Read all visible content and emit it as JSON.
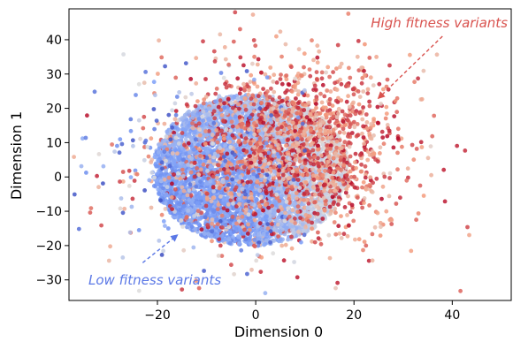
{
  "chart_data": {
    "type": "scatter",
    "xlabel": "Dimension 0",
    "ylabel": "Dimension 1",
    "xlim": [
      -38,
      52
    ],
    "ylim": [
      -36,
      49
    ],
    "xticks": [
      -20,
      0,
      20,
      40
    ],
    "yticks": [
      -30,
      -20,
      -10,
      0,
      10,
      20,
      30,
      40
    ],
    "xtick_labels": [
      "−20",
      "0",
      "20",
      "40"
    ],
    "ytick_labels": [
      "−30",
      "−20",
      "−10",
      "0",
      "10",
      "20",
      "30",
      "40"
    ],
    "grid": false,
    "colormap": "coolwarm",
    "cluster": {
      "center": [
        -1,
        2
      ],
      "radius_x": 20,
      "radius_y": 22
    },
    "annotations": [
      {
        "text": "High fitness variants",
        "color": "#d9534f",
        "arrow_from": [
          38,
          41
        ],
        "arrow_to": [
          25,
          23
        ]
      },
      {
        "text": "Low fitness variants",
        "color": "#5b78e6",
        "arrow_from": [
          -23,
          -25
        ],
        "arrow_to": [
          -16,
          -17
        ]
      }
    ]
  },
  "colors": {
    "low": "#6f8ff0",
    "high": "#c83b3b",
    "axis": "#000000"
  }
}
